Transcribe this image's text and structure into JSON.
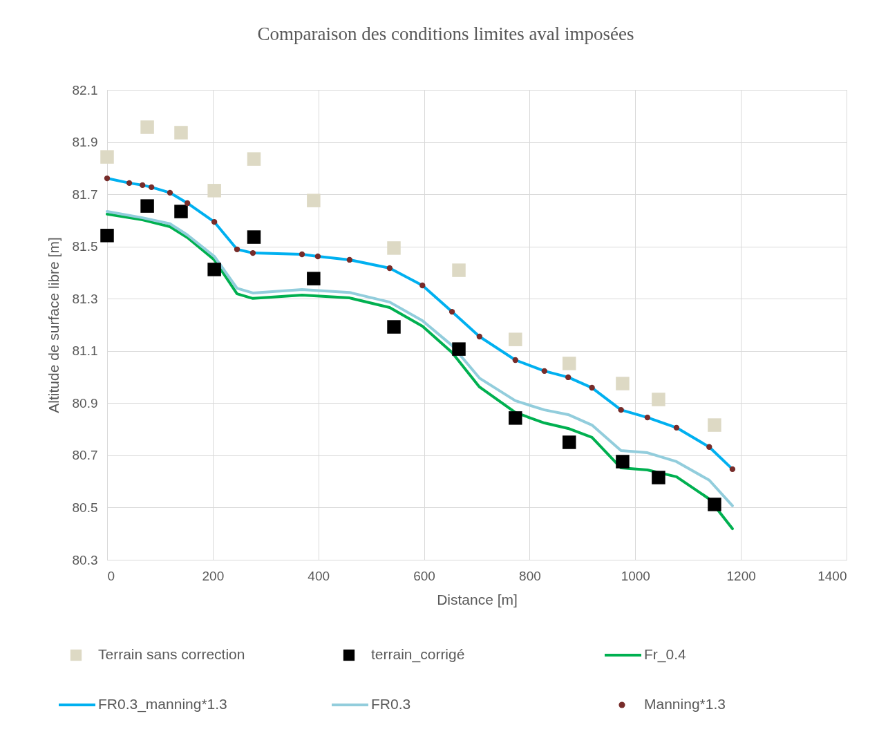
{
  "chart_data": {
    "type": "line",
    "title": "Comparaison des conditions limites aval imposées",
    "xlabel": "Distance [m]",
    "ylabel": "Altitude de surface libre [m]",
    "xlim": [
      0,
      1400
    ],
    "xticks": [
      0,
      200,
      400,
      600,
      800,
      1000,
      1200,
      1400
    ],
    "ylim": [
      80.3,
      82.1
    ],
    "yticks": [
      80.3,
      80.5,
      80.7,
      80.9,
      81.1,
      81.3,
      81.5,
      81.7,
      81.9,
      82.1
    ],
    "grid": true,
    "legend": "bottom",
    "series": [
      {
        "name": "Terrain sans correction",
        "type": "scatter",
        "marker": "square",
        "color": "#ddd9c4",
        "x": [
          0,
          76,
          140,
          203,
          278,
          391,
          543,
          666,
          773,
          875,
          976,
          1044,
          1150
        ],
        "values": [
          81.843,
          81.957,
          81.936,
          81.714,
          81.835,
          81.676,
          81.494,
          81.409,
          81.144,
          81.052,
          80.975,
          80.914,
          80.816
        ]
      },
      {
        "name": "terrain_corrigé",
        "type": "scatter",
        "marker": "square",
        "color": "#000000",
        "x": [
          0,
          76,
          140,
          203,
          278,
          391,
          543,
          666,
          773,
          875,
          976,
          1044,
          1150
        ],
        "values": [
          81.542,
          81.655,
          81.634,
          81.412,
          81.536,
          81.377,
          81.192,
          81.107,
          80.843,
          80.75,
          80.676,
          80.615,
          80.512
        ]
      },
      {
        "name": "Fr_0.4",
        "marker": "none",
        "color": "#00b050",
        "x": [
          0,
          67,
          119,
          152,
          203,
          246,
          276,
          369,
          459,
          535,
          597,
          653,
          705,
          773,
          828,
          873,
          918,
          973,
          1023,
          1078,
          1140,
          1184
        ],
        "values": [
          81.624,
          81.602,
          81.576,
          81.534,
          81.449,
          81.319,
          81.301,
          81.314,
          81.303,
          81.266,
          81.195,
          81.094,
          80.962,
          80.864,
          80.824,
          80.803,
          80.769,
          80.652,
          80.644,
          80.618,
          80.533,
          80.419
        ]
      },
      {
        "name": "FR0.3_manning*1.3",
        "marker": "none",
        "color": "#00b0f0",
        "x": [
          0,
          42,
          67,
          84,
          119,
          152,
          203,
          246,
          276,
          369,
          399,
          459,
          535,
          597,
          653,
          705,
          773,
          828,
          873,
          918,
          973,
          1023,
          1078,
          1140,
          1184
        ],
        "values": [
          81.761,
          81.743,
          81.735,
          81.727,
          81.706,
          81.666,
          81.594,
          81.489,
          81.475,
          81.47,
          81.462,
          81.449,
          81.417,
          81.351,
          81.25,
          81.155,
          81.065,
          81.023,
          80.999,
          80.959,
          80.874,
          80.845,
          80.806,
          80.732,
          80.647
        ]
      },
      {
        "name": "FR0.3",
        "marker": "none",
        "color": "#92cddc",
        "x": [
          0,
          67,
          119,
          152,
          203,
          246,
          276,
          369,
          459,
          535,
          597,
          653,
          705,
          773,
          828,
          873,
          918,
          973,
          1023,
          1078,
          1140,
          1184
        ],
        "values": [
          81.634,
          81.61,
          81.587,
          81.544,
          81.462,
          81.34,
          81.322,
          81.335,
          81.324,
          81.287,
          81.216,
          81.121,
          80.996,
          80.909,
          80.874,
          80.856,
          80.816,
          80.718,
          80.71,
          80.676,
          80.605,
          80.507
        ]
      },
      {
        "name": "Manning*1.3",
        "type": "scatter",
        "marker": "circle",
        "color": "#772c2a",
        "x": [
          0,
          42,
          67,
          84,
          119,
          152,
          203,
          246,
          276,
          369,
          399,
          459,
          535,
          597,
          653,
          705,
          773,
          828,
          873,
          918,
          973,
          1023,
          1078,
          1140,
          1184
        ],
        "values": [
          81.761,
          81.743,
          81.735,
          81.727,
          81.706,
          81.666,
          81.594,
          81.489,
          81.475,
          81.47,
          81.462,
          81.449,
          81.417,
          81.351,
          81.25,
          81.155,
          81.065,
          81.023,
          80.999,
          80.959,
          80.874,
          80.845,
          80.806,
          80.732,
          80.647
        ]
      }
    ]
  }
}
